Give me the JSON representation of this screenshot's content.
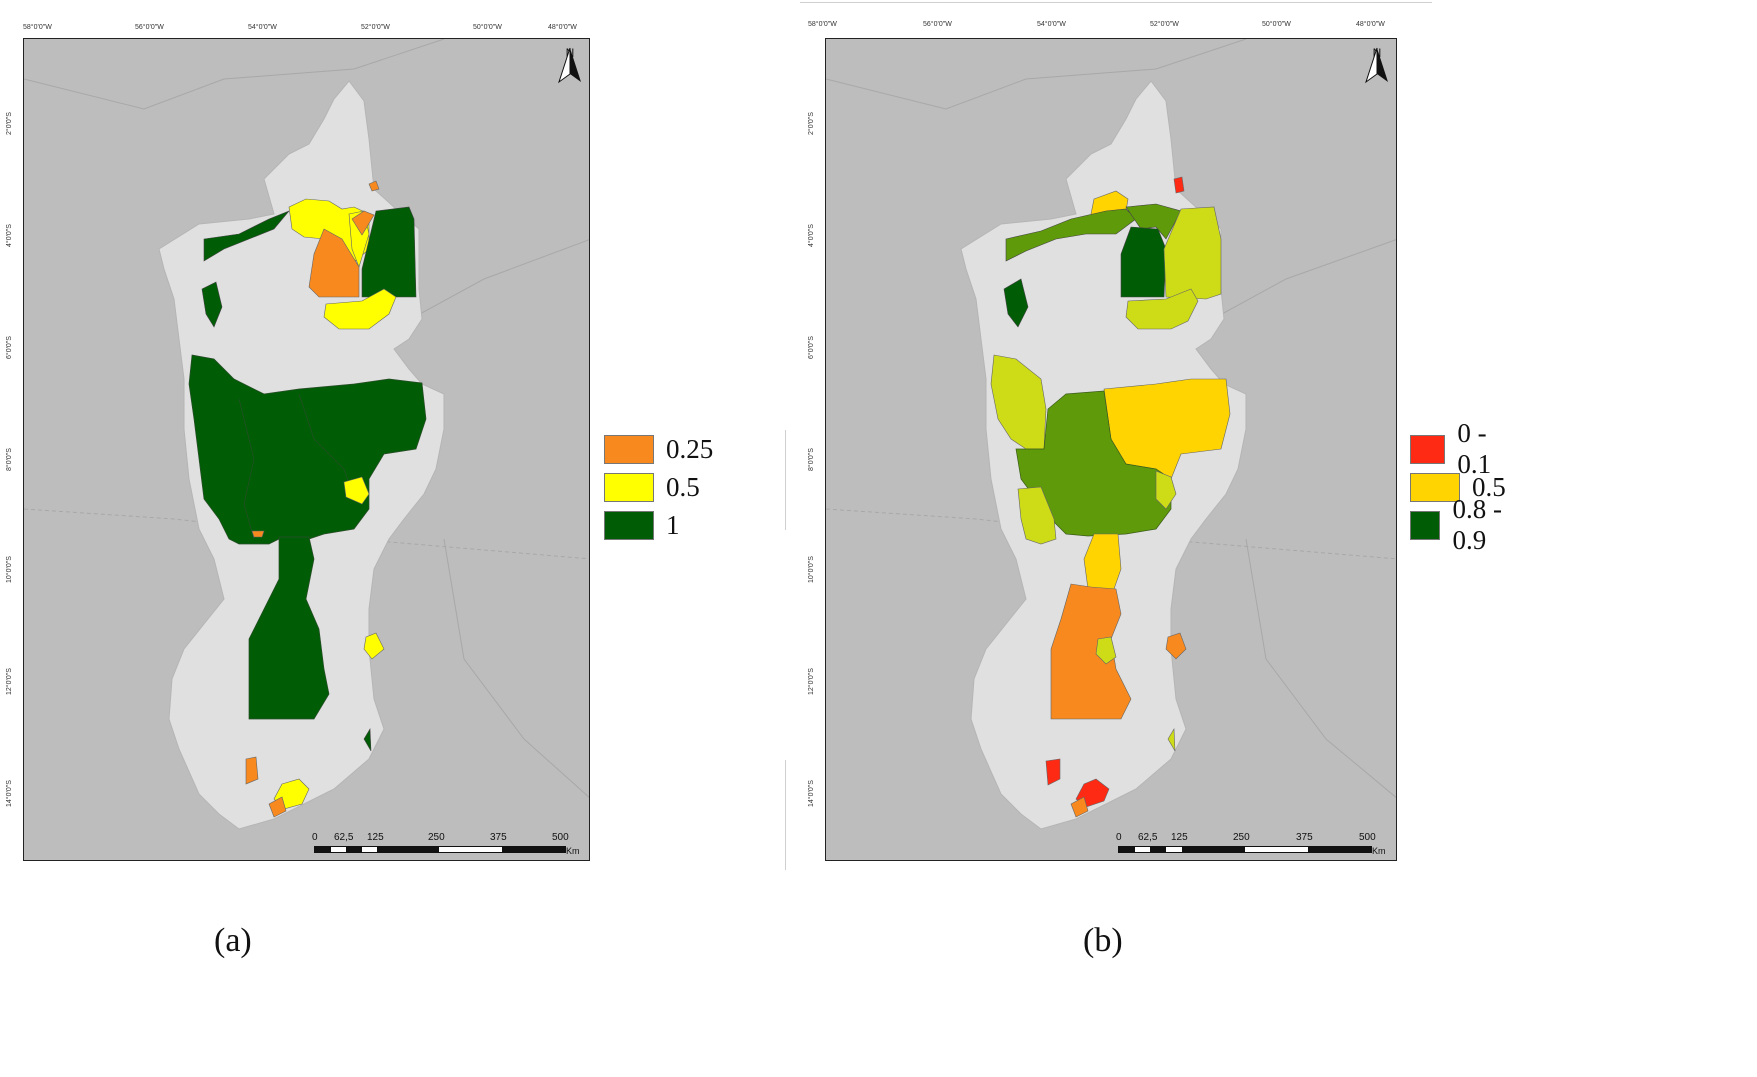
{
  "panels": [
    {
      "id": "a",
      "caption": "(a)",
      "lon_labels": [
        "58°0'0\"W",
        "56°0'0\"W",
        "54°0'0\"W",
        "52°0'0\"W",
        "50°0'0\"W",
        "48°0'0\"W"
      ],
      "lat_labels": [
        "2°0'0\"S",
        "4°0'0\"S",
        "6°0'0\"S",
        "8°0'0\"S",
        "10°0'0\"S",
        "12°0'0\"S",
        "14°0'0\"S"
      ],
      "north": "N",
      "scale_labels": [
        "0",
        "62,5",
        "125",
        "250",
        "375",
        "500"
      ],
      "scale_unit": "Km",
      "legend": [
        {
          "label": "0.25",
          "color": "#f7891f"
        },
        {
          "label": "0.5",
          "color": "#ffff00"
        },
        {
          "label": "1",
          "color": "#005c05"
        }
      ]
    },
    {
      "id": "b",
      "caption": "(b)",
      "lon_labels": [
        "58°0'0\"W",
        "56°0'0\"W",
        "54°0'0\"W",
        "52°0'0\"W",
        "50°0'0\"W",
        "48°0'0\"W"
      ],
      "lat_labels": [
        "2°0'0\"S",
        "4°0'0\"S",
        "6°0'0\"S",
        "8°0'0\"S",
        "10°0'0\"S",
        "12°0'0\"S",
        "14°0'0\"S"
      ],
      "north": "N",
      "scale_labels": [
        "0",
        "62,5",
        "125",
        "250",
        "375",
        "500"
      ],
      "scale_unit": "Km",
      "legend": [
        {
          "label": "0 - 0.1",
          "color": "#ff2a14"
        },
        {
          "label": "0.5",
          "color": "#ffd400"
        },
        {
          "label": "0.8 - 0.9",
          "color": "#005c05"
        }
      ]
    }
  ],
  "colors": {
    "background_gray": "#bdbdbd",
    "region_light": "#e0e0e0",
    "orange": "#f7891f",
    "yellow_a": "#ffff00",
    "green_dark": "#005c05",
    "red": "#ff2a14",
    "yellow_b": "#ffd400",
    "yellow_green": "#cddc17",
    "olive_green": "#5f9a0a"
  }
}
